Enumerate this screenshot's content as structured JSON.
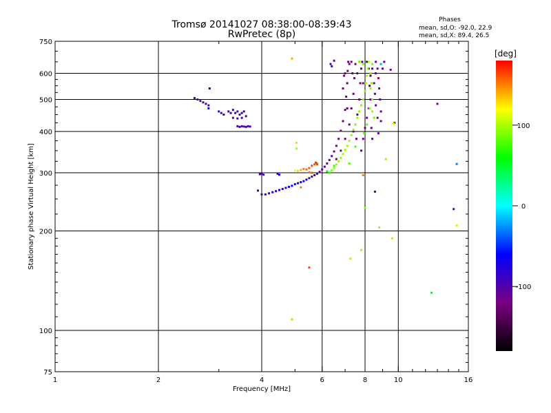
{
  "chart_data": {
    "type": "scatter",
    "title": "Tromsø 20141027 08:38:00-08:39:43",
    "subtitle": "RwPretec (8p)",
    "xlabel": "Frequency [MHz]",
    "ylabel": "Stationary phase Virtual Height [km]",
    "x_scale": "log2",
    "y_scale": "log",
    "xlim": [
      1,
      16
    ],
    "ylim": [
      75,
      750
    ],
    "x_ticks": [
      "1",
      "2",
      "4",
      "6",
      "8",
      "10",
      "16"
    ],
    "x_tick_values": [
      1,
      2,
      4,
      6,
      8,
      10,
      16
    ],
    "y_ticks": [
      "75",
      "100",
      "200",
      "300",
      "400",
      "500",
      "600",
      "750"
    ],
    "y_tick_values": [
      75,
      100,
      200,
      300,
      400,
      500,
      600,
      750
    ],
    "x_grid": [
      2,
      4,
      6,
      8,
      10
    ],
    "y_grid": [
      100,
      200,
      300,
      400,
      500,
      600
    ],
    "grid": true,
    "phase_info": {
      "title": "Phases",
      "line1": "mean, sd,O: -92.0, 22.9",
      "line2": "mean, sd,X:  89.4, 26.5"
    },
    "colorbar": {
      "label": "[deg]",
      "range": [
        -180,
        180
      ],
      "ticks": [
        "100",
        "0",
        "-100"
      ],
      "tick_values": [
        100,
        0,
        -100
      ],
      "colors": [
        "#000000",
        "#7a0080",
        "#0000ff",
        "#00ffff",
        "#00ff00",
        "#ffff00",
        "#ff0000"
      ]
    },
    "series": [
      {
        "points": [
          [
            2.55,
            505,
            -95
          ],
          [
            2.6,
            500,
            -95
          ],
          [
            2.65,
            495,
            -110
          ],
          [
            2.7,
            490,
            -90
          ],
          [
            2.75,
            485,
            -85
          ],
          [
            2.8,
            480,
            -100
          ],
          [
            2.82,
            540,
            -60
          ],
          [
            2.8,
            470,
            -70
          ],
          [
            3.0,
            460,
            -90
          ],
          [
            3.05,
            455,
            -100
          ],
          [
            3.1,
            450,
            -95
          ],
          [
            3.2,
            460,
            -95
          ],
          [
            3.25,
            455,
            -100
          ],
          [
            3.3,
            465,
            -90
          ],
          [
            3.35,
            455,
            -95
          ],
          [
            3.4,
            460,
            -100
          ],
          [
            3.45,
            450,
            -95
          ],
          [
            3.5,
            455,
            -90
          ],
          [
            3.55,
            460,
            -95
          ],
          [
            3.6,
            445,
            -100
          ],
          [
            3.3,
            440,
            -100
          ],
          [
            3.4,
            438,
            -95
          ],
          [
            3.5,
            440,
            -95
          ],
          [
            3.4,
            415,
            -100
          ],
          [
            3.45,
            413,
            -95
          ],
          [
            3.5,
            415,
            -100
          ],
          [
            3.55,
            414,
            -95
          ],
          [
            3.6,
            413,
            -90
          ],
          [
            3.65,
            415,
            -95
          ],
          [
            3.7,
            414,
            -100
          ],
          [
            3.95,
            297,
            -90
          ],
          [
            4.0,
            298,
            -95
          ],
          [
            4.05,
            296,
            -90
          ],
          [
            3.9,
            265,
            -80
          ],
          [
            4.45,
            298,
            -60
          ],
          [
            4.5,
            296,
            -70
          ],
          [
            4.0,
            258,
            -90
          ],
          [
            4.1,
            258,
            -85
          ],
          [
            4.2,
            260,
            -80
          ],
          [
            4.3,
            262,
            -75
          ],
          [
            4.4,
            264,
            -75
          ],
          [
            4.5,
            266,
            -70
          ],
          [
            4.6,
            268,
            -70
          ],
          [
            4.7,
            270,
            -65
          ],
          [
            4.8,
            272,
            -70
          ],
          [
            4.9,
            274,
            -65
          ],
          [
            5.0,
            277,
            -60
          ],
          [
            5.1,
            279,
            -65
          ],
          [
            5.2,
            281,
            -60
          ],
          [
            5.3,
            283,
            -70
          ],
          [
            5.4,
            286,
            -70
          ],
          [
            5.5,
            289,
            -75
          ],
          [
            5.6,
            292,
            -80
          ],
          [
            5.7,
            295,
            -85
          ],
          [
            5.8,
            298,
            -95
          ],
          [
            5.9,
            302,
            -100
          ],
          [
            6.0,
            307,
            -105
          ],
          [
            6.1,
            313,
            -110
          ],
          [
            6.2,
            320,
            -110
          ],
          [
            6.3,
            328,
            -115
          ],
          [
            6.4,
            337,
            -115
          ],
          [
            6.5,
            348,
            -120
          ],
          [
            6.6,
            362,
            -120
          ],
          [
            6.7,
            380,
            -120
          ],
          [
            6.8,
            402,
            -125
          ],
          [
            6.9,
            430,
            -125
          ],
          [
            7.0,
            465,
            -125
          ],
          [
            7.05,
            510,
            -130
          ],
          [
            7.1,
            560,
            -130
          ],
          [
            7.12,
            610,
            -130
          ],
          [
            7.15,
            650,
            -130
          ],
          [
            6.6,
            330,
            -120
          ],
          [
            6.8,
            350,
            -120
          ],
          [
            7.0,
            380,
            -125
          ],
          [
            7.2,
            420,
            -125
          ],
          [
            7.3,
            470,
            -130
          ],
          [
            7.4,
            520,
            -130
          ],
          [
            7.45,
            580,
            -125
          ],
          [
            7.5,
            640,
            -120
          ],
          [
            7.4,
            400,
            -125
          ],
          [
            7.6,
            450,
            -125
          ],
          [
            7.7,
            500,
            -130
          ],
          [
            7.75,
            560,
            -125
          ],
          [
            7.8,
            620,
            -130
          ],
          [
            7.3,
            650,
            -120
          ],
          [
            7.35,
            600,
            -115
          ],
          [
            7.2,
            640,
            -115
          ],
          [
            7.0,
            600,
            -120
          ],
          [
            6.9,
            540,
            -125
          ],
          [
            6.95,
            590,
            -125
          ],
          [
            7.6,
            600,
            -130
          ],
          [
            7.9,
            560,
            -120
          ],
          [
            7.85,
            650,
            -125
          ],
          [
            7.5,
            420,
            -120
          ],
          [
            7.1,
            470,
            -130
          ],
          [
            7.55,
            380,
            -125
          ],
          [
            8.6,
            650,
            -120
          ],
          [
            8.7,
            620,
            -115
          ],
          [
            8.75,
            580,
            -120
          ],
          [
            8.8,
            540,
            -115
          ],
          [
            8.85,
            500,
            -110
          ],
          [
            8.9,
            460,
            -110
          ],
          [
            8.9,
            430,
            -110
          ],
          [
            8.6,
            600,
            -110
          ],
          [
            8.5,
            560,
            -110
          ],
          [
            8.55,
            520,
            -105
          ],
          [
            8.6,
            480,
            -110
          ],
          [
            8.7,
            440,
            -110
          ],
          [
            8.35,
            410,
            -105
          ],
          [
            8.4,
            380,
            -100
          ],
          [
            8.75,
            395,
            -110
          ],
          [
            9.1,
            650,
            -110
          ],
          [
            9.0,
            620,
            -105
          ],
          [
            8.1,
            650,
            -140
          ],
          [
            8.2,
            620,
            -145
          ],
          [
            8.3,
            590,
            -140
          ],
          [
            8.25,
            550,
            -135
          ],
          [
            8.4,
            620,
            -110
          ],
          [
            8.3,
            500,
            -120
          ],
          [
            8.2,
            470,
            -115
          ],
          [
            8.1,
            440,
            -120
          ],
          [
            8.0,
            410,
            -120
          ],
          [
            7.9,
            380,
            -115
          ],
          [
            7.8,
            350,
            -110
          ],
          [
            6.5,
            655,
            -100
          ],
          [
            6.35,
            640,
            -95
          ],
          [
            6.4,
            630,
            -95
          ],
          [
            9.75,
            425,
            -110
          ],
          [
            8.55,
            263,
            -100
          ],
          [
            14.5,
            233,
            -100
          ],
          [
            9.5,
            615,
            -110
          ],
          [
            13.0,
            485,
            -110
          ]
        ]
      },
      {
        "points": [
          [
            5.0,
            305,
            120
          ],
          [
            5.1,
            304,
            130
          ],
          [
            5.2,
            306,
            140
          ],
          [
            5.3,
            308,
            150
          ],
          [
            5.4,
            307,
            155
          ],
          [
            5.5,
            310,
            160
          ],
          [
            5.6,
            315,
            165
          ],
          [
            5.7,
            318,
            160
          ],
          [
            5.8,
            320,
            150
          ],
          [
            5.5,
            301,
            155
          ],
          [
            5.6,
            300,
            160
          ],
          [
            5.75,
            322,
            170
          ],
          [
            5.8,
            318,
            165
          ],
          [
            6.4,
            305,
            90
          ],
          [
            6.5,
            310,
            95
          ],
          [
            6.6,
            318,
            95
          ],
          [
            6.7,
            325,
            90
          ],
          [
            6.8,
            333,
            92
          ],
          [
            6.9,
            342,
            95
          ],
          [
            7.0,
            352,
            92
          ],
          [
            7.1,
            362,
            95
          ],
          [
            7.2,
            375,
            98
          ],
          [
            7.3,
            390,
            95
          ],
          [
            7.4,
            405,
            90
          ],
          [
            7.5,
            420,
            92
          ],
          [
            7.6,
            440,
            90
          ],
          [
            7.7,
            460,
            88
          ],
          [
            7.8,
            480,
            90
          ],
          [
            7.9,
            500,
            92
          ],
          [
            8.0,
            530,
            90
          ],
          [
            8.05,
            560,
            92
          ],
          [
            8.1,
            590,
            95
          ],
          [
            8.15,
            620,
            95
          ],
          [
            8.2,
            650,
            92
          ],
          [
            8.3,
            600,
            90
          ],
          [
            8.35,
            560,
            88
          ],
          [
            8.4,
            500,
            90
          ],
          [
            8.4,
            460,
            92
          ],
          [
            8.5,
            440,
            85
          ],
          [
            8.3,
            540,
            88
          ],
          [
            8.25,
            470,
            86
          ],
          [
            8.4,
            640,
            85
          ],
          [
            7.7,
            650,
            82
          ],
          [
            7.9,
            640,
            84
          ],
          [
            6.3,
            300,
            70
          ],
          [
            6.5,
            315,
            72
          ],
          [
            6.2,
            303,
            60
          ],
          [
            7.2,
            320,
            80
          ],
          [
            7.5,
            360,
            78
          ],
          [
            8.1,
            420,
            78
          ],
          [
            7.95,
            395,
            75
          ],
          [
            9.2,
            330,
            95
          ],
          [
            9.7,
            423,
            100
          ],
          [
            9.6,
            190,
            100
          ],
          [
            8.8,
            205,
            95
          ],
          [
            8.0,
            235,
            90
          ],
          [
            7.25,
            165,
            100
          ],
          [
            7.9,
            295,
            150
          ],
          [
            7.8,
            175,
            98
          ],
          [
            5.05,
            370,
            130
          ],
          [
            4.9,
            665,
            140
          ],
          [
            4.9,
            108,
            95
          ],
          [
            5.05,
            355,
            98
          ],
          [
            5.2,
            271,
            150
          ],
          [
            5.5,
            155,
            165
          ],
          [
            12.5,
            130,
            60
          ],
          [
            14.8,
            208,
            105
          ],
          [
            14.8,
            319,
            -30
          ],
          [
            8.9,
            640,
            -20
          ]
        ]
      }
    ]
  }
}
